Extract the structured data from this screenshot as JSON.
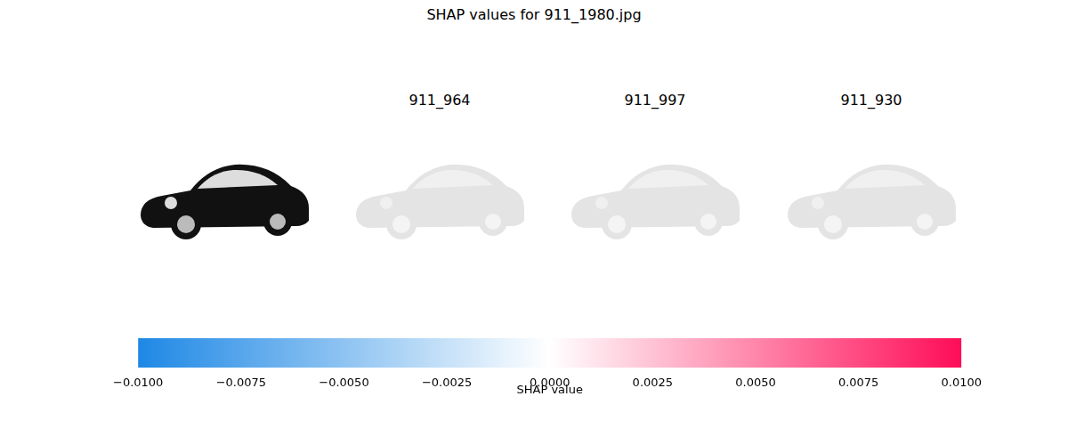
{
  "chart_data": {
    "type": "image",
    "title": "SHAP values for 911_1980.jpg",
    "panels": [
      "911_964",
      "911_997",
      "911_930"
    ],
    "colorbar": {
      "label": "SHAP value",
      "range": [
        -0.01,
        0.01
      ],
      "ticks": [
        {
          "value": -0.01,
          "label": "−0.0100"
        },
        {
          "value": -0.0075,
          "label": "−0.0075"
        },
        {
          "value": -0.005,
          "label": "−0.0050"
        },
        {
          "value": -0.0025,
          "label": "−0.0025"
        },
        {
          "value": 0,
          "label": "0.0000"
        },
        {
          "value": 0.0025,
          "label": "0.0025"
        },
        {
          "value": 0.005,
          "label": "0.0050"
        },
        {
          "value": 0.0075,
          "label": "0.0075"
        },
        {
          "value": 0.01,
          "label": "0.0100"
        }
      ],
      "colors": [
        "#1e88e5",
        "#ffffff",
        "#ff0d57"
      ]
    }
  }
}
